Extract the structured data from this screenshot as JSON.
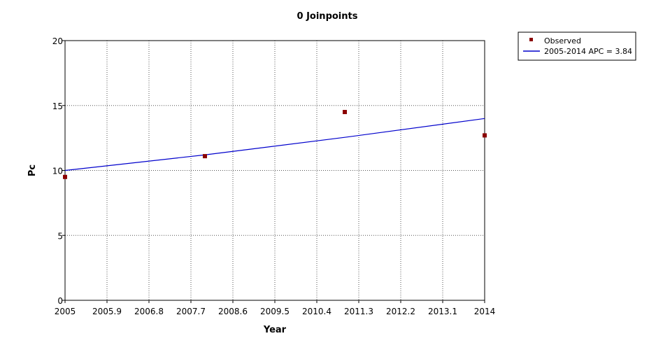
{
  "chart_data": {
    "type": "line",
    "title": "0 Joinpoints",
    "xlabel": "Year",
    "ylabel": "Pc",
    "xlim": [
      2005,
      2014
    ],
    "ylim": [
      0,
      20
    ],
    "x_ticks": [
      "2005",
      "2005.9",
      "2006.8",
      "2007.7",
      "2008.6",
      "2009.5",
      "2010.4",
      "2011.3",
      "2012.2",
      "2013.1",
      "2014"
    ],
    "y_ticks": [
      "0",
      "5",
      "10",
      "15",
      "20"
    ],
    "grid": true,
    "legend_position": "top-right outside",
    "series": [
      {
        "name": "Observed",
        "kind": "scatter",
        "color": "#8b0000",
        "x": [
          2005,
          2008,
          2011,
          2014
        ],
        "y": [
          9.5,
          11.1,
          14.5,
          12.7
        ]
      },
      {
        "name": "2005-2014 APC  = 3.84",
        "kind": "line",
        "color": "#0000cc",
        "x": [
          2005,
          2008,
          2011,
          2014
        ],
        "y": [
          10.0,
          11.2,
          12.55,
          14.0
        ]
      }
    ]
  }
}
